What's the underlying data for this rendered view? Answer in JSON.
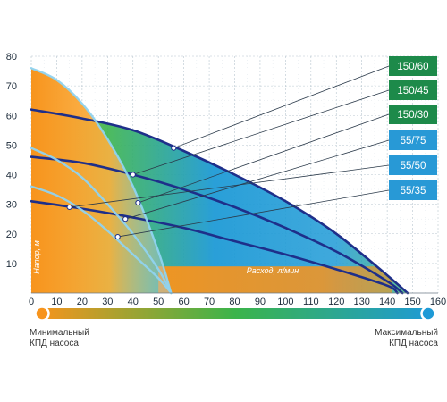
{
  "chart_data": {
    "type": "line",
    "xlabel": "Расход, л/мин",
    "ylabel": "Напор, м",
    "xlim": [
      0,
      160
    ],
    "ylim": [
      0,
      80
    ],
    "x_ticks": [
      0,
      10,
      20,
      30,
      40,
      50,
      60,
      70,
      80,
      90,
      100,
      110,
      120,
      130,
      140,
      150,
      160
    ],
    "y_ticks": [
      10,
      20,
      30,
      40,
      50,
      60,
      70,
      80
    ],
    "grid": true,
    "series": [
      {
        "name": "150/60",
        "color": "#1d8a4a",
        "x": [
          0,
          20,
          40,
          60,
          80,
          100,
          120,
          140,
          148
        ],
        "y": [
          62,
          59,
          55,
          48,
          40,
          31,
          20,
          6,
          0
        ]
      },
      {
        "name": "150/45",
        "color": "#1d8a4a",
        "x": [
          0,
          20,
          40,
          60,
          80,
          100,
          120,
          140,
          146
        ],
        "y": [
          46,
          44,
          40,
          35,
          29,
          22,
          14,
          4,
          0
        ]
      },
      {
        "name": "150/30",
        "color": "#1d8a4a",
        "x": [
          0,
          20,
          40,
          60,
          80,
          100,
          120,
          140,
          144
        ],
        "y": [
          31,
          28.5,
          25.5,
          22,
          17.5,
          13,
          8,
          2.5,
          0
        ]
      },
      {
        "name": "55/75",
        "color": "#2899d6",
        "x": [
          0,
          10,
          20,
          30,
          40,
          50,
          55
        ],
        "y": [
          76,
          72,
          64,
          52,
          36,
          14,
          0
        ]
      },
      {
        "name": "55/50",
        "color": "#2899d6",
        "x": [
          0,
          10,
          20,
          30,
          40,
          50,
          55
        ],
        "y": [
          49,
          45,
          39,
          30,
          20,
          8,
          0
        ]
      },
      {
        "name": "55/35",
        "color": "#2899d6",
        "x": [
          0,
          10,
          20,
          30,
          40,
          50,
          55
        ],
        "y": [
          36,
          33,
          28,
          21,
          13,
          5,
          0
        ]
      }
    ],
    "points": [
      {
        "x": 56,
        "y": 49
      },
      {
        "x": 40,
        "y": 40
      },
      {
        "x": 42,
        "y": 30.5
      },
      {
        "x": 37,
        "y": 25
      },
      {
        "x": 15,
        "y": 29
      },
      {
        "x": 34,
        "y": 19
      }
    ],
    "efficiency_colors": {
      "min": "#f7941d",
      "mid": "#3bb44a",
      "max": "#1e9ad6"
    },
    "curve_color": "#1e2f8a",
    "legend": {
      "min_label_line1": "Минимальный",
      "min_label_line2": "КПД насоса",
      "max_label_line1": "Максимальный",
      "max_label_line2": "КПД насоса"
    }
  }
}
